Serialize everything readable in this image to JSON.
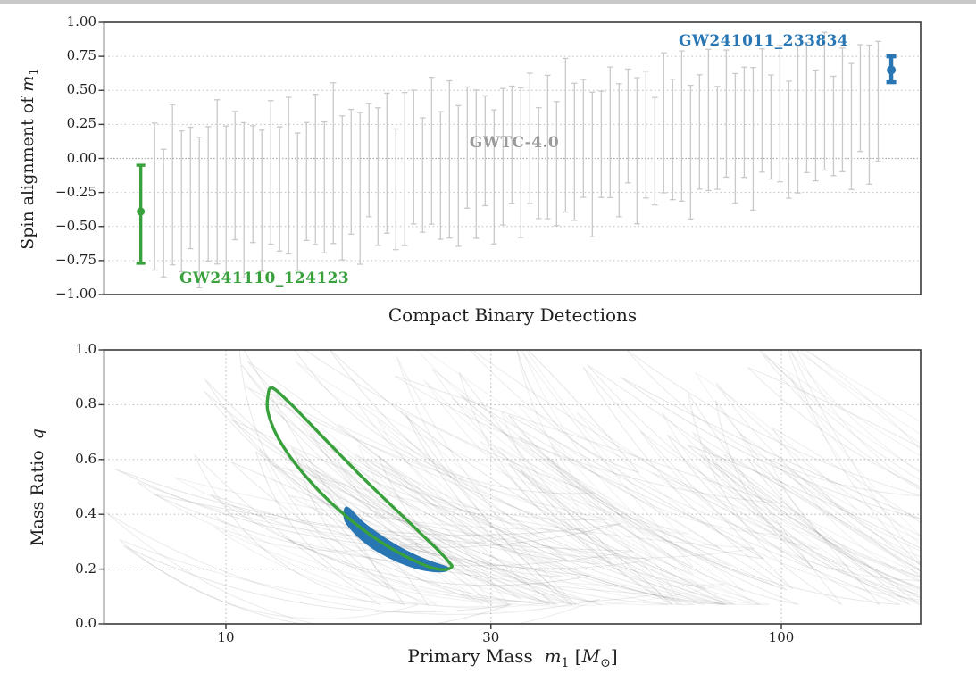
{
  "page": {
    "background": "#ffffff",
    "top_strip_color": "#c9c9c9"
  },
  "colors": {
    "green": "#38a13c",
    "blue": "#2877b4",
    "gray_bar": "#c9c9c9",
    "catalog_gray": "#9b9b9b",
    "axis": "#3a3a3a",
    "grid": "#bfbfbf",
    "zero_line": "#ababab",
    "contour_gray": "#6e6e6e"
  },
  "chart_data": [
    {
      "panel": "spin-alignment",
      "type": "errorbar",
      "xlabel": "Compact Binary Detections",
      "ylabel": {
        "text": "Spin alignment of",
        "m": "m",
        "msub": "1"
      },
      "ylim": [
        -1,
        1
      ],
      "grid": true,
      "yticks": {
        "values": [
          1,
          0.75,
          0.5,
          0.25,
          0,
          -0.25,
          -0.5,
          -0.75,
          -1
        ],
        "labels": [
          "1.00",
          "0.75",
          "0.50",
          "0.25",
          "0.00",
          "−0.25",
          "−0.50",
          "−0.75",
          "−1.00"
        ]
      },
      "catalog_label": {
        "text": "GWTC-4.0"
      },
      "events": [
        {
          "name": "GW241110_124123",
          "color": "#38a13c",
          "median": -0.39,
          "interval": [
            -0.77,
            -0.05
          ],
          "x_frac": 0.045
        },
        {
          "name": "GW241011_233834",
          "color": "#2877b4",
          "median": 0.65,
          "interval": [
            0.56,
            0.75
          ],
          "x_frac": 0.964
        }
      ],
      "gwtc_bars": {
        "count": 82,
        "x_frac_start": 0.062,
        "x_frac_end": 0.948,
        "median_start": -0.32,
        "median_end": 0.35,
        "halfwidth_start": 0.52,
        "halfwidth_end": 0.44,
        "median_jitter_cycle": [
          0.04,
          -0.09,
          0.11,
          -0.02,
          0.07,
          -0.13,
          0.01,
          0.09,
          -0.05,
          0.12,
          -0.07
        ],
        "halfwidth_jitter_cycle": [
          0.02,
          -0.05,
          0.07,
          0,
          -0.07,
          0.05,
          -0.02,
          0.09,
          0.03,
          -0.04,
          0.06,
          -0.08,
          0.01
        ],
        "clip": [
          -0.95,
          0.97
        ]
      }
    },
    {
      "panel": "mass-ratio",
      "type": "contour",
      "xlabel": {
        "text": "Primary Mass",
        "m": "m",
        "msub": "1",
        "open": "[",
        "M": "M",
        "sun": "⊙",
        "close": "]"
      },
      "ylabel": {
        "text": "Mass Ratio",
        "math": "q"
      },
      "xscale": "log",
      "xlim": [
        6,
        178
      ],
      "ylim": [
        0,
        1
      ],
      "grid": true,
      "xticks": {
        "values": [
          10,
          30,
          100
        ],
        "labels": [
          "10",
          "30",
          "100"
        ]
      },
      "yticks": {
        "values": [
          0,
          0.2,
          0.4,
          0.6,
          0.8,
          1
        ],
        "labels": [
          "0.0",
          "0.2",
          "0.4",
          "0.6",
          "0.8",
          "1.0"
        ]
      },
      "green_contour": {
        "event": "GW241110_124123",
        "outline": [
          [
            12.1,
            0.862
          ],
          [
            12.9,
            0.815
          ],
          [
            13.8,
            0.755
          ],
          [
            14.9,
            0.685
          ],
          [
            16.1,
            0.615
          ],
          [
            17.5,
            0.54
          ],
          [
            19.1,
            0.465
          ],
          [
            20.9,
            0.39
          ],
          [
            22.7,
            0.32
          ],
          [
            24.3,
            0.262
          ],
          [
            25.3,
            0.222
          ],
          [
            25.5,
            0.208
          ],
          [
            24.8,
            0.198
          ],
          [
            23.5,
            0.205
          ],
          [
            22.0,
            0.228
          ],
          [
            20.4,
            0.262
          ],
          [
            18.9,
            0.302
          ],
          [
            17.5,
            0.35
          ],
          [
            16.2,
            0.405
          ],
          [
            15.0,
            0.468
          ],
          [
            13.9,
            0.54
          ],
          [
            13.0,
            0.615
          ],
          [
            12.3,
            0.695
          ],
          [
            11.9,
            0.775
          ],
          [
            11.9,
            0.83
          ]
        ]
      },
      "blue_region": {
        "event": "GW241011_233834",
        "outline": [
          [
            16.5,
            0.425
          ],
          [
            17.6,
            0.372
          ],
          [
            18.8,
            0.328
          ],
          [
            20.1,
            0.29
          ],
          [
            21.5,
            0.258
          ],
          [
            23.0,
            0.232
          ],
          [
            24.3,
            0.215
          ],
          [
            25.1,
            0.205
          ],
          [
            24.9,
            0.194
          ],
          [
            23.8,
            0.192
          ],
          [
            22.4,
            0.2
          ],
          [
            21.0,
            0.218
          ],
          [
            19.6,
            0.245
          ],
          [
            18.3,
            0.28
          ],
          [
            17.2,
            0.325
          ],
          [
            16.4,
            0.378
          ]
        ]
      },
      "background_contours": {
        "seed": 20241011,
        "pop_main": {
          "count": 92,
          "logm_min": 0.9,
          "logm_span": 1.12,
          "skew": 0.8,
          "qtop_min": 0.55,
          "qtop_span": 0.52,
          "len_min": 0.22,
          "len_span": 0.5,
          "drop_min": 0.45,
          "drop_span": 0.5,
          "width_min": 0.015,
          "width_span": 0.06,
          "bend_min": 0.04,
          "bend_span": 0.14
        },
        "pop_low": {
          "count": 14,
          "logm_min": 0.78,
          "logm_span": 0.35,
          "skew": 1.0,
          "qtop_min": 0.28,
          "qtop_span": 0.3,
          "len_min": 0.45,
          "len_span": 0.5,
          "drop_min": 0.15,
          "drop_span": 0.25,
          "width_min": 0.02,
          "width_span": 0.05,
          "bend_min": 0.1,
          "bend_span": 0.15
        }
      }
    }
  ]
}
